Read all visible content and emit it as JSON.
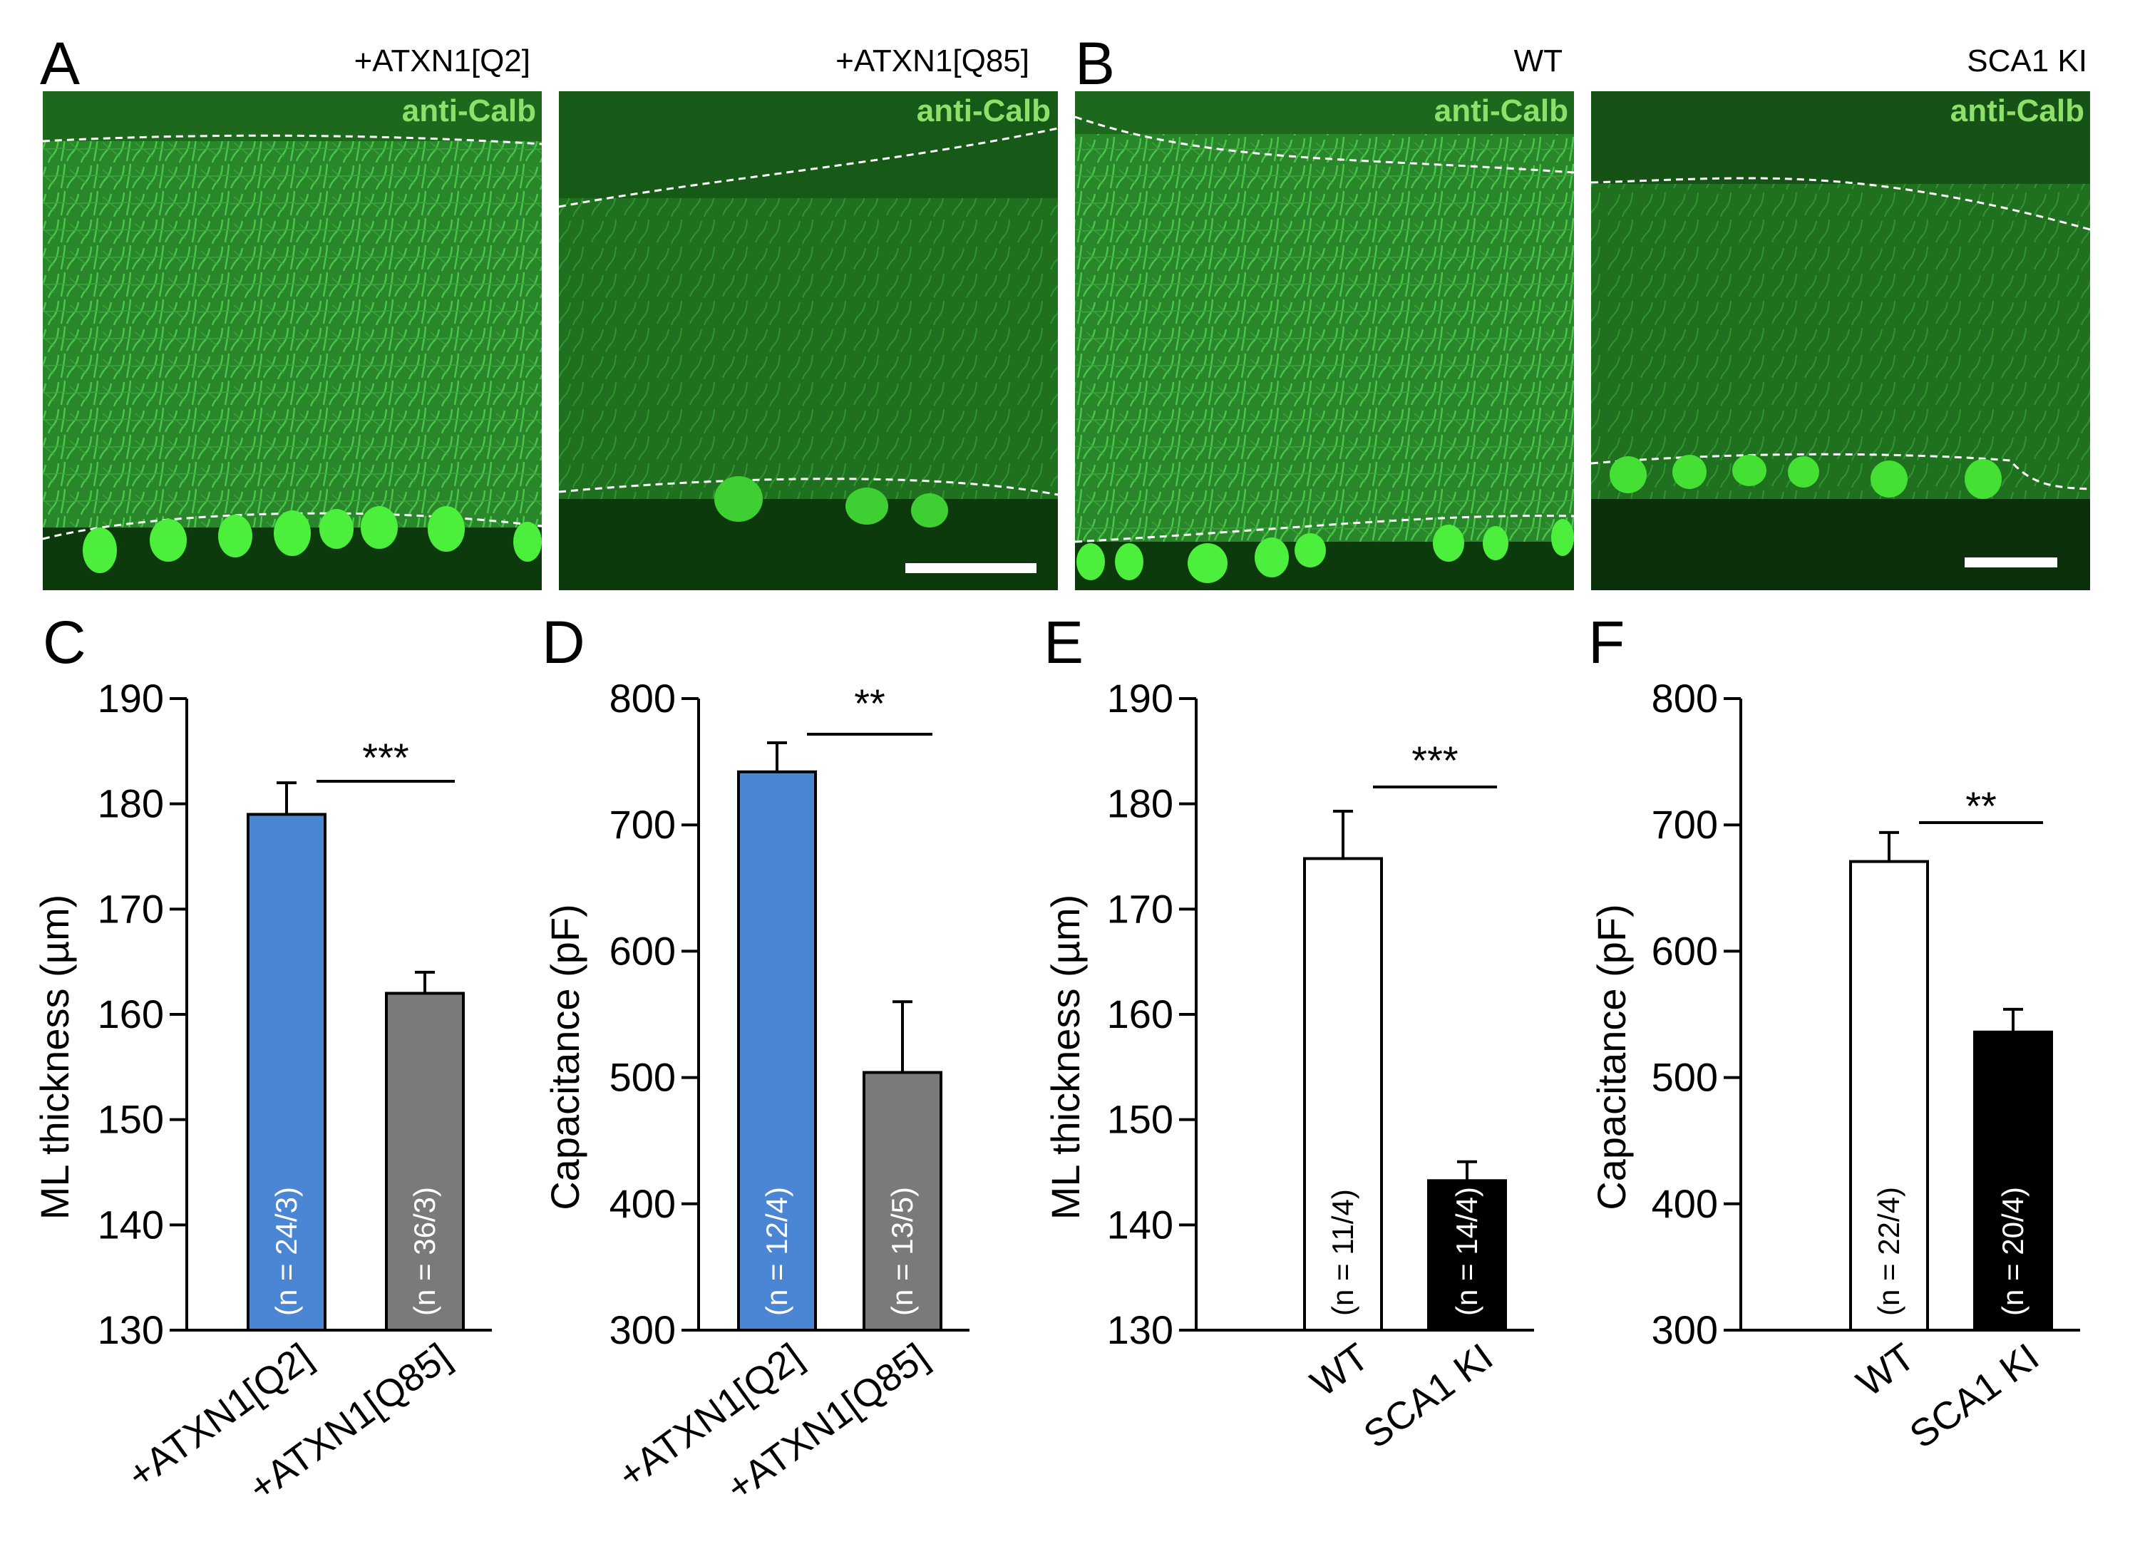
{
  "image_panels": [
    {
      "letter": "A",
      "title": "+ATXN1[Q2]",
      "stain": "anti-Calb",
      "scale_bar": false
    },
    {
      "letter": "",
      "title": "+ATXN1[Q85]",
      "stain": "anti-Calb",
      "scale_bar": true
    },
    {
      "letter": "B",
      "title": "WT",
      "stain": "anti-Calb",
      "scale_bar": false
    },
    {
      "letter": "",
      "title": "SCA1 KI",
      "stain": "anti-Calb",
      "scale_bar": true
    }
  ],
  "colors": {
    "q2_bar": "#4a86d4",
    "q85_bar": "#7a7a7a",
    "wt_bar": "#ffffff",
    "ki_bar": "#000000",
    "tissue": "#2c8a2c",
    "soma": "#4cf03c"
  },
  "chart_data": [
    {
      "letter": "C",
      "type": "bar",
      "categories": [
        "+ATXN1[Q2]",
        "+ATXN1[Q85]"
      ],
      "values": [
        179,
        162
      ],
      "errors": [
        3,
        2
      ],
      "n_labels": [
        "(n = 24/3)",
        "(n = 36/3)"
      ],
      "bar_colors": [
        "#4a86d4",
        "#7a7a7a"
      ],
      "n_label_color": "#ffffff",
      "ylabel": "ML thickness (µm)",
      "ylim": [
        130,
        190
      ],
      "yticks": [
        130,
        140,
        150,
        160,
        170,
        180,
        190
      ],
      "significance": "***",
      "grid": false
    },
    {
      "letter": "D",
      "type": "bar",
      "categories": [
        "+ATXN1[Q2]",
        "+ATXN1[Q85]"
      ],
      "values": [
        742,
        504
      ],
      "errors": [
        23,
        56
      ],
      "n_labels": [
        "(n = 12/4)",
        "(n = 13/5)"
      ],
      "bar_colors": [
        "#4a86d4",
        "#7a7a7a"
      ],
      "n_label_color": "#ffffff",
      "ylabel": "Capacitance (pF)",
      "ylim": [
        300,
        800
      ],
      "yticks": [
        300,
        400,
        500,
        600,
        700,
        800
      ],
      "significance": "**",
      "grid": false
    },
    {
      "letter": "E",
      "type": "bar",
      "categories": [
        "WT",
        "SCA1 KI"
      ],
      "values": [
        174.8,
        144.2
      ],
      "errors": [
        4.5,
        1.8
      ],
      "n_labels": [
        "(n = 11/4)",
        "(n = 14/4)"
      ],
      "bar_colors": [
        "#ffffff",
        "#000000"
      ],
      "n_label_colors": [
        "#000000",
        "#ffffff"
      ],
      "ylabel": "ML thickness (µm)",
      "ylim": [
        130,
        190
      ],
      "yticks": [
        130,
        140,
        150,
        160,
        170,
        180,
        190
      ],
      "significance": "***",
      "grid": false
    },
    {
      "letter": "F",
      "type": "bar",
      "categories": [
        "WT",
        "SCA1 KI"
      ],
      "values": [
        671,
        536
      ],
      "errors": [
        23,
        18
      ],
      "n_labels": [
        "(n = 22/4)",
        "(n = 20/4)"
      ],
      "bar_colors": [
        "#ffffff",
        "#000000"
      ],
      "n_label_colors": [
        "#000000",
        "#ffffff"
      ],
      "ylabel": "Capacitance (pF)",
      "ylim": [
        300,
        800
      ],
      "yticks": [
        300,
        400,
        500,
        600,
        700,
        800
      ],
      "significance": "**",
      "grid": false
    }
  ]
}
